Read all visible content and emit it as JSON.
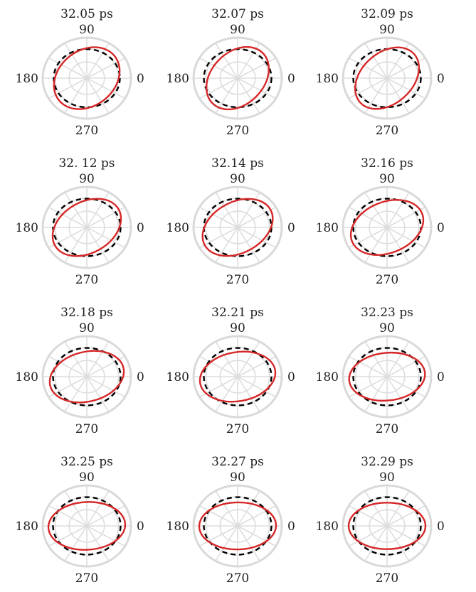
{
  "chart_data": [
    {
      "type": "polar",
      "title": "32.05 ps",
      "angle_labels": [
        "90",
        "180",
        "0",
        "270"
      ],
      "series": [
        {
          "style": "dashed",
          "color": "#000000",
          "rx": 0.93,
          "ry": 0.89,
          "tilt": 0
        },
        {
          "style": "solid",
          "color": "#d62728",
          "rx": 1.0,
          "ry": 0.85,
          "tilt": 38
        }
      ]
    },
    {
      "type": "polar",
      "title": "32.07 ps",
      "angle_labels": [
        "90",
        "180",
        "0",
        "270"
      ],
      "series": [
        {
          "style": "dashed",
          "color": "#000000",
          "rx": 0.95,
          "ry": 0.89,
          "tilt": 0
        },
        {
          "style": "solid",
          "color": "#d62728",
          "rx": 1.0,
          "ry": 0.8,
          "tilt": 45
        }
      ]
    },
    {
      "type": "polar",
      "title": "32.09 ps",
      "angle_labels": [
        "90",
        "180",
        "0",
        "270"
      ],
      "series": [
        {
          "style": "dashed",
          "color": "#000000",
          "rx": 0.95,
          "ry": 0.89,
          "tilt": 0
        },
        {
          "style": "solid",
          "color": "#d62728",
          "rx": 1.02,
          "ry": 0.78,
          "tilt": 42
        }
      ]
    },
    {
      "type": "polar",
      "title": "32. 12 ps",
      "angle_labels": [
        "90",
        "180",
        "0",
        "270"
      ],
      "series": [
        {
          "style": "dashed",
          "color": "#000000",
          "rx": 0.95,
          "ry": 0.88,
          "tilt": 0
        },
        {
          "style": "solid",
          "color": "#d62728",
          "rx": 1.03,
          "ry": 0.78,
          "tilt": 30
        }
      ]
    },
    {
      "type": "polar",
      "title": "32.14 ps",
      "angle_labels": [
        "90",
        "180",
        "0",
        "270"
      ],
      "series": [
        {
          "style": "dashed",
          "color": "#000000",
          "rx": 0.95,
          "ry": 0.88,
          "tilt": 0
        },
        {
          "style": "solid",
          "color": "#d62728",
          "rx": 1.05,
          "ry": 0.78,
          "tilt": 28
        }
      ]
    },
    {
      "type": "polar",
      "title": "32.16 ps",
      "angle_labels": [
        "90",
        "180",
        "0",
        "270"
      ],
      "series": [
        {
          "style": "dashed",
          "color": "#000000",
          "rx": 0.95,
          "ry": 0.88,
          "tilt": 0
        },
        {
          "style": "solid",
          "color": "#d62728",
          "rx": 1.06,
          "ry": 0.78,
          "tilt": 22
        }
      ]
    },
    {
      "type": "polar",
      "title": "32.18 ps",
      "angle_labels": [
        "90",
        "180",
        "0",
        "270"
      ],
      "series": [
        {
          "style": "dashed",
          "color": "#000000",
          "rx": 0.95,
          "ry": 0.88,
          "tilt": 0
        },
        {
          "style": "solid",
          "color": "#d62728",
          "rx": 1.06,
          "ry": 0.76,
          "tilt": 14
        }
      ]
    },
    {
      "type": "polar",
      "title": "32.21 ps",
      "angle_labels": [
        "90",
        "180",
        "0",
        "270"
      ],
      "series": [
        {
          "style": "dashed",
          "color": "#000000",
          "rx": 0.95,
          "ry": 0.88,
          "tilt": 0
        },
        {
          "style": "solid",
          "color": "#d62728",
          "rx": 1.07,
          "ry": 0.75,
          "tilt": 10
        }
      ]
    },
    {
      "type": "polar",
      "title": "32.23 ps",
      "angle_labels": [
        "90",
        "180",
        "0",
        "270"
      ],
      "series": [
        {
          "style": "dashed",
          "color": "#000000",
          "rx": 0.95,
          "ry": 0.88,
          "tilt": 0
        },
        {
          "style": "solid",
          "color": "#d62728",
          "rx": 1.07,
          "ry": 0.73,
          "tilt": 6
        }
      ]
    },
    {
      "type": "polar",
      "title": "32.25 ps",
      "angle_labels": [
        "90",
        "180",
        "0",
        "270"
      ],
      "series": [
        {
          "style": "dashed",
          "color": "#000000",
          "rx": 0.95,
          "ry": 0.88,
          "tilt": 0
        },
        {
          "style": "solid",
          "color": "#d62728",
          "rx": 1.08,
          "ry": 0.73,
          "tilt": 3
        }
      ]
    },
    {
      "type": "polar",
      "title": "32.27 ps",
      "angle_labels": [
        "90",
        "180",
        "0",
        "270"
      ],
      "series": [
        {
          "style": "dashed",
          "color": "#000000",
          "rx": 0.95,
          "ry": 0.88,
          "tilt": 0
        },
        {
          "style": "solid",
          "color": "#d62728",
          "rx": 1.08,
          "ry": 0.72,
          "tilt": 1
        }
      ]
    },
    {
      "type": "polar",
      "title": "32.29 ps",
      "angle_labels": [
        "90",
        "180",
        "0",
        "270"
      ],
      "series": [
        {
          "style": "dashed",
          "color": "#000000",
          "rx": 0.95,
          "ry": 0.88,
          "tilt": 0
        },
        {
          "style": "solid",
          "color": "#d62728",
          "rx": 1.08,
          "ry": 0.71,
          "tilt": 0
        }
      ]
    }
  ]
}
